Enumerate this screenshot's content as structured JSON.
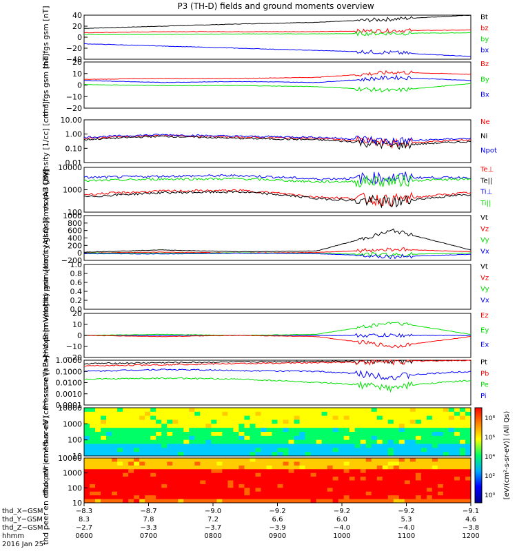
{
  "title": "P3 (TH-D) fields and ground moments overview",
  "colors": {
    "black": "#000000",
    "red": "#ff0000",
    "green": "#00e000",
    "blue": "#0000ff"
  },
  "chart_data": [
    {
      "type": "line",
      "ylabel": "thd fgs gsm [nT]",
      "ylim": [
        -40,
        40
      ],
      "ticks": [
        "40",
        "20",
        "0",
        "−20",
        "−40"
      ],
      "legend": [
        {
          "label": "Bt",
          "color": "black"
        },
        {
          "label": "bz",
          "color": "red"
        },
        {
          "label": "by",
          "color": "green"
        },
        {
          "label": "bx",
          "color": "blue"
        }
      ],
      "series": [
        {
          "name": "Bt",
          "x": [
            0,
            0.2,
            0.4,
            0.6,
            0.8,
            1.0
          ],
          "y": [
            16,
            20,
            24,
            27,
            33,
            40
          ]
        },
        {
          "name": "bz",
          "x": [
            0,
            0.2,
            0.4,
            0.6,
            0.8,
            1.0
          ],
          "y": [
            8,
            10,
            10,
            10,
            12,
            13
          ]
        },
        {
          "name": "by",
          "x": [
            0,
            0.2,
            0.4,
            0.6,
            0.8,
            1.0
          ],
          "y": [
            5,
            5,
            6,
            6,
            7,
            8
          ]
        },
        {
          "name": "bx",
          "x": [
            0,
            0.2,
            0.4,
            0.6,
            0.8,
            1.0
          ],
          "y": [
            -12,
            -16,
            -20,
            -24,
            -28,
            -35
          ]
        }
      ]
    },
    {
      "type": "line",
      "ylabel": "thd fgs gsm [nT]",
      "ylim": [
        -25,
        20
      ],
      "ticks": [
        "20",
        "10",
        "0",
        "−10",
        "−20"
      ],
      "legend": [
        {
          "label": "Bz",
          "color": "red"
        },
        {
          "label": "By",
          "color": "green"
        },
        {
          "label": "Bx",
          "color": "blue"
        }
      ],
      "series": [
        {
          "name": "Bz",
          "x": [
            0,
            0.2,
            0.4,
            0.6,
            0.8,
            1.0
          ],
          "y": [
            3,
            4,
            4,
            5,
            10,
            8
          ]
        },
        {
          "name": "By",
          "x": [
            0,
            0.2,
            0.4,
            0.6,
            0.8,
            1.0
          ],
          "y": [
            -2,
            -3,
            -3,
            -4,
            -8,
            -1
          ]
        },
        {
          "name": "Bx",
          "x": [
            0,
            0.2,
            0.4,
            0.6,
            0.8,
            1.0
          ],
          "y": [
            2,
            0,
            1,
            0,
            5,
            2
          ]
        }
      ]
    },
    {
      "type": "line",
      "log": true,
      "ylabel": "Density [1/cc] [cm⁻³]",
      "ylim": [
        0.01,
        10
      ],
      "ticks": [
        "10.00",
        "1.00",
        "0.10",
        "0.01"
      ],
      "legend": [
        {
          "label": "Ne",
          "color": "red"
        },
        {
          "label": "Ni",
          "color": "black"
        },
        {
          "label": "Npot",
          "color": "blue"
        }
      ],
      "series": [
        {
          "name": "Ne",
          "x": [
            0,
            0.2,
            0.4,
            0.6,
            0.8,
            1.0
          ],
          "y": [
            0.5,
            0.8,
            0.6,
            0.5,
            0.2,
            0.4
          ]
        },
        {
          "name": "Ni",
          "x": [
            0,
            0.2,
            0.4,
            0.6,
            0.8,
            1.0
          ],
          "y": [
            0.4,
            0.7,
            0.5,
            0.4,
            0.15,
            0.3
          ]
        },
        {
          "name": "Npot",
          "x": [
            0,
            0.2,
            0.4,
            0.6,
            0.8,
            1.0
          ],
          "y": [
            0.6,
            0.9,
            0.7,
            0.6,
            0.3,
            0.5
          ]
        }
      ]
    },
    {
      "type": "line",
      "log": true,
      "ylabel": "mom3 [eV]",
      "ylim": [
        50,
        10000
      ],
      "ticks": [
        "10000",
        "1000",
        "100"
      ],
      "legend": [
        {
          "label": "Te⊥",
          "color": "red"
        },
        {
          "label": "Te||",
          "color": "black"
        },
        {
          "label": "Ti⊥",
          "color": "blue"
        },
        {
          "label": "Ti||",
          "color": "green"
        }
      ],
      "series": [
        {
          "name": "Ti⊥",
          "x": [
            0,
            0.2,
            0.4,
            0.6,
            0.8,
            1.0
          ],
          "y": [
            3000,
            3500,
            3800,
            2500,
            3000,
            3000
          ]
        },
        {
          "name": "Ti||",
          "x": [
            0,
            0.2,
            0.4,
            0.6,
            0.8,
            1.0
          ],
          "y": [
            2000,
            2500,
            2600,
            1800,
            2000,
            2500
          ]
        },
        {
          "name": "Te⊥",
          "x": [
            0,
            0.2,
            0.4,
            0.6,
            0.8,
            1.0
          ],
          "y": [
            400,
            600,
            650,
            300,
            200,
            500
          ]
        },
        {
          "name": "Te||",
          "x": [
            0,
            0.2,
            0.4,
            0.6,
            0.8,
            1.0
          ],
          "y": [
            300,
            500,
            550,
            250,
            150,
            400
          ]
        }
      ]
    },
    {
      "type": "line",
      "ylabel": "thd peir velocity gsm [km/s (All Qs)]",
      "ylim": [
        -200,
        1000
      ],
      "ticks": [
        "1000",
        "800",
        "600",
        "400",
        "200",
        "0",
        "−200"
      ],
      "legend": [
        {
          "label": "Vt",
          "color": "black"
        },
        {
          "label": "Vz",
          "color": "red"
        },
        {
          "label": "Vy",
          "color": "green"
        },
        {
          "label": "Vx",
          "color": "blue"
        }
      ],
      "series": [
        {
          "name": "Vt",
          "x": [
            0,
            0.2,
            0.4,
            0.6,
            0.8,
            1.0
          ],
          "y": [
            20,
            80,
            30,
            50,
            600,
            80
          ]
        },
        {
          "name": "Vz",
          "x": [
            0,
            0.2,
            0.4,
            0.6,
            0.8,
            1.0
          ],
          "y": [
            0,
            20,
            0,
            10,
            100,
            30
          ]
        },
        {
          "name": "Vy",
          "x": [
            0,
            0.2,
            0.4,
            0.6,
            0.8,
            1.0
          ],
          "y": [
            0,
            -10,
            0,
            -10,
            -50,
            0
          ]
        },
        {
          "name": "Vx",
          "x": [
            0,
            0.2,
            0.4,
            0.6,
            0.8,
            1.0
          ],
          "y": [
            -20,
            -30,
            -10,
            -20,
            -100,
            -40
          ]
        }
      ]
    },
    {
      "type": "line",
      "ylabel": "thd peer velocity gsm [km/s (All Qs)]",
      "ylim": [
        0,
        1
      ],
      "ticks": [
        "1.0",
        "0.8",
        "0.6",
        "0.4",
        "0.2",
        "0.0"
      ],
      "legend": [
        {
          "label": "Vt",
          "color": "black"
        },
        {
          "label": "Vz",
          "color": "red"
        },
        {
          "label": "Vy",
          "color": "green"
        },
        {
          "label": "Vx",
          "color": "blue"
        }
      ],
      "series": []
    },
    {
      "type": "line",
      "ylabel": "E=−VxB [mV/m]",
      "ylim": [
        -20,
        20
      ],
      "ticks": [
        "20",
        "10",
        "0",
        "−10",
        "−20"
      ],
      "legend": [
        {
          "label": "Ez",
          "color": "red"
        },
        {
          "label": "Ey",
          "color": "green"
        },
        {
          "label": "Ex",
          "color": "blue"
        }
      ],
      "series": [
        {
          "name": "Ex",
          "x": [
            0,
            0.2,
            0.4,
            0.6,
            0.8,
            1.0
          ],
          "y": [
            0,
            0,
            0,
            0,
            0,
            0
          ]
        },
        {
          "name": "Ey",
          "x": [
            0,
            0.2,
            0.4,
            0.6,
            0.8,
            1.0
          ],
          "y": [
            0,
            1,
            0,
            1,
            12,
            1
          ]
        },
        {
          "name": "Ez",
          "x": [
            0,
            0.2,
            0.4,
            0.6,
            0.8,
            1.0
          ],
          "y": [
            0,
            -1,
            0,
            -1,
            -10,
            -1
          ]
        }
      ]
    },
    {
      "type": "line",
      "log": true,
      "ylabel": "Pressure [nPa]",
      "ylim": [
        0.0001,
        1
      ],
      "ticks": [
        "1.0000",
        "0.1000",
        "0.0100",
        "0.0010",
        "0.0001"
      ],
      "legend": [
        {
          "label": "Pt",
          "color": "black"
        },
        {
          "label": "Pb",
          "color": "red"
        },
        {
          "label": "Pe",
          "color": "green"
        },
        {
          "label": "Pi",
          "color": "blue"
        }
      ],
      "series": [
        {
          "name": "Pt",
          "x": [
            0,
            0.2,
            0.4,
            0.6,
            0.8,
            1.0
          ],
          "y": [
            0.5,
            0.6,
            0.7,
            0.8,
            0.9,
            1.0
          ]
        },
        {
          "name": "Pb",
          "x": [
            0,
            0.2,
            0.4,
            0.6,
            0.8,
            1.0
          ],
          "y": [
            0.3,
            0.4,
            0.5,
            0.6,
            0.8,
            1.0
          ]
        },
        {
          "name": "Pi",
          "x": [
            0,
            0.2,
            0.4,
            0.6,
            0.8,
            1.0
          ],
          "y": [
            0.1,
            0.15,
            0.12,
            0.1,
            0.03,
            0.1
          ]
        },
        {
          "name": "Pe",
          "x": [
            0,
            0.2,
            0.4,
            0.6,
            0.8,
            1.0
          ],
          "y": [
            0.02,
            0.025,
            0.02,
            0.01,
            0.003,
            0.015
          ]
        }
      ]
    },
    {
      "type": "heatmap",
      "log": true,
      "ylabel": "thd peir en eflux eV (cm²-s-sr-eV)",
      "ylim": [
        5,
        30000
      ],
      "ticks": [
        "10000",
        "1000",
        "100",
        "10"
      ],
      "colorbar_label": "[eV/(cm²-s-sr-eV)] (All Qs)"
    },
    {
      "type": "heatmap",
      "log": true,
      "ylabel": "thd peer en eflux eV (cm²-s-sr-eV)",
      "ylim": [
        5,
        30000
      ],
      "ticks": [
        "10000",
        "1000",
        "100",
        "10"
      ]
    }
  ],
  "colorbar_ticks": [
    "10⁸",
    "10⁶",
    "10⁴",
    "10²",
    "10⁰"
  ],
  "xaxis": {
    "row_labels": [
      "thd_X−GSM",
      "thd_Y−GSM",
      "thd_Z−GSM",
      "hhmm",
      "2016 Jan 25"
    ],
    "columns": [
      [
        "−8.3",
        "8.3",
        "−2.7",
        "0600"
      ],
      [
        "−8.7",
        "7.8",
        "−3.3",
        "0700"
      ],
      [
        "−9.0",
        "7.2",
        "−3.7",
        "0800"
      ],
      [
        "−9.2",
        "6.6",
        "−3.9",
        "0900"
      ],
      [
        "−9.2",
        "6.0",
        "−4.0",
        "1000"
      ],
      [
        "−9.2",
        "5.3",
        "−4.0",
        "1100"
      ],
      [
        "−9.1",
        "4.6",
        "−3.8",
        "1200"
      ]
    ]
  }
}
